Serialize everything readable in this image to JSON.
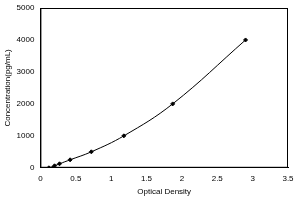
{
  "chart_data": {
    "type": "scatter",
    "x_label": "Optical Density",
    "y_label": "Concentration(pg/mL)",
    "x": [
      0.12,
      0.2,
      0.27,
      0.42,
      0.72,
      1.18,
      1.87,
      2.9
    ],
    "values": [
      0,
      62.5,
      125,
      250,
      500,
      1000,
      2000,
      4000
    ],
    "color": "#000000",
    "marker": "diamond",
    "line_style": "solid",
    "xlim": [
      0,
      3.5
    ],
    "xticks": [
      0,
      0.5,
      1,
      1.5,
      2,
      2.5,
      3,
      3.5
    ],
    "ylim": [
      0,
      5000
    ],
    "yticks": [
      0,
      1000,
      2000,
      3000,
      4000,
      5000
    ],
    "grid": false
  }
}
